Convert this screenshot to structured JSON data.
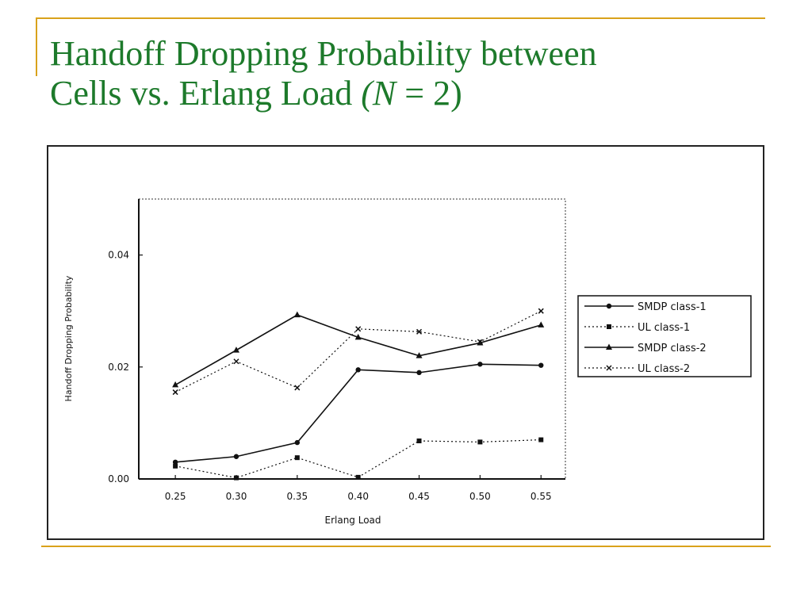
{
  "slide": {
    "title_line1": "Handoff Dropping Probability between",
    "title_line2_prefix": "Cells vs. Erlang Load ",
    "title_paren_open": "(",
    "title_italic_var": "N",
    "title_eq": " = 2)"
  },
  "colors": {
    "title": "#1d7a2b",
    "accent": "#d9a21b",
    "ink": "#111111"
  },
  "chart_data": {
    "type": "line",
    "xlabel": "Erlang Load",
    "ylabel": "Handoff Dropping Probability",
    "x": [
      0.25,
      0.3,
      0.35,
      0.4,
      0.45,
      0.5,
      0.55
    ],
    "x_tick_labels": [
      "0.25",
      "0.30",
      "0.35",
      "0.40",
      "0.45",
      "0.50",
      "0.55"
    ],
    "y_ticks": [
      0.0,
      0.02,
      0.04
    ],
    "y_tick_labels": [
      "0.00",
      "0.02",
      "0.04"
    ],
    "xlim": [
      0.22,
      0.57
    ],
    "ylim": [
      0.0,
      0.05
    ],
    "grid": false,
    "legend_position": "right",
    "series": [
      {
        "name": "SMDP class-1",
        "dash": "solid",
        "marker": "circle",
        "values": [
          0.003,
          0.004,
          0.0065,
          0.0195,
          0.019,
          0.0205,
          0.0203
        ]
      },
      {
        "name": "UL class-1",
        "dash": "dotted",
        "marker": "square",
        "values": [
          0.0023,
          0.0002,
          0.0038,
          0.0003,
          0.0068,
          0.0066,
          0.007
        ]
      },
      {
        "name": "SMDP class-2",
        "dash": "solid",
        "marker": "triangle",
        "values": [
          0.0168,
          0.023,
          0.0293,
          0.0253,
          0.022,
          0.0243,
          0.0275
        ]
      },
      {
        "name": "UL class-2",
        "dash": "dotted",
        "marker": "x",
        "values": [
          0.0155,
          0.021,
          0.0163,
          0.0268,
          0.0263,
          0.0245,
          0.03
        ]
      }
    ]
  }
}
